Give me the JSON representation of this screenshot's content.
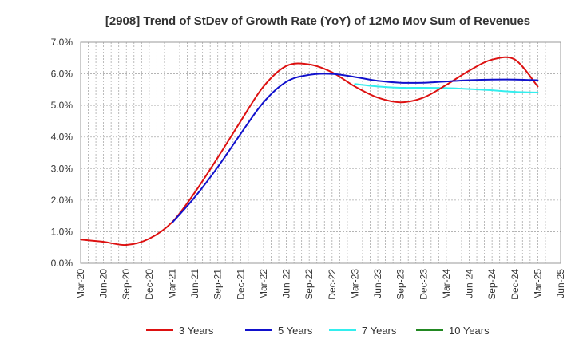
{
  "chart_data": {
    "type": "line",
    "title": "[2908]  Trend of StDev of Growth Rate (YoY) of 12Mo Mov Sum of Revenues",
    "xlabel": "",
    "ylabel": "",
    "grid": true,
    "ylim": [
      0,
      7
    ],
    "y_ticks": [
      0,
      1,
      2,
      3,
      4,
      5,
      6,
      7
    ],
    "y_tick_labels": [
      "0.0%",
      "1.0%",
      "2.0%",
      "3.0%",
      "4.0%",
      "5.0%",
      "6.0%",
      "7.0%"
    ],
    "x_ticks": [
      "Mar-20",
      "Jun-20",
      "Sep-20",
      "Dec-20",
      "Mar-21",
      "Jun-21",
      "Sep-21",
      "Dec-21",
      "Mar-22",
      "Jun-22",
      "Sep-22",
      "Dec-22",
      "Mar-23",
      "Jun-23",
      "Sep-23",
      "Dec-23",
      "Mar-24",
      "Jun-24",
      "Sep-24",
      "Dec-24",
      "Mar-25",
      "Jun-25"
    ],
    "legend_position": "bottom",
    "series": [
      {
        "name": "3 Years",
        "color": "#dd1111",
        "values": [
          0.75,
          0.68,
          0.58,
          0.78,
          1.3,
          2.25,
          3.35,
          4.5,
          5.6,
          6.25,
          6.3,
          6.05,
          5.6,
          5.25,
          5.1,
          5.25,
          5.65,
          6.1,
          6.45,
          6.45,
          5.6
        ]
      },
      {
        "name": "5 Years",
        "color": "#1111cc",
        "values": [
          null,
          null,
          null,
          null,
          1.28,
          2.1,
          3.05,
          4.1,
          5.1,
          5.75,
          5.97,
          6.0,
          5.9,
          5.78,
          5.72,
          5.72,
          5.76,
          5.8,
          5.82,
          5.82,
          5.8
        ]
      },
      {
        "name": "7 Years",
        "color": "#33eeee",
        "values": [
          null,
          null,
          null,
          null,
          null,
          null,
          null,
          null,
          null,
          null,
          null,
          null,
          5.68,
          5.6,
          5.56,
          5.56,
          5.55,
          5.52,
          5.48,
          5.43,
          5.41
        ]
      },
      {
        "name": "10 Years",
        "color": "#228822",
        "values": [
          null,
          null,
          null,
          null,
          null,
          null,
          null,
          null,
          null,
          null,
          null,
          null,
          null,
          null,
          null,
          null,
          null,
          null,
          null,
          null,
          null
        ]
      }
    ]
  }
}
